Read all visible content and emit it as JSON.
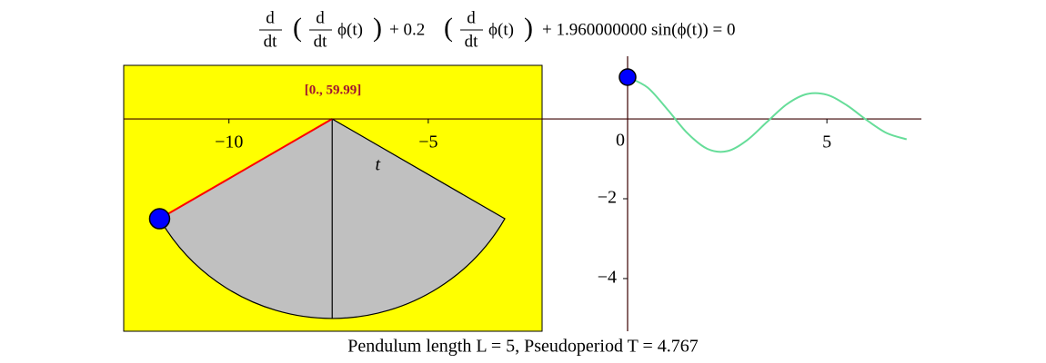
{
  "chart_data": {
    "type": "line",
    "equation": [
      "d",
      "dt",
      "d",
      "dt",
      "ϕ(t)",
      "+ 0.2",
      "d",
      "dt",
      "ϕ(t)",
      "+ 1.960000000 sin(ϕ(t)) = 0"
    ],
    "range_label": "[0., 59.99]",
    "caption": "Pendulum length L = 5, Pseudoperiod T = 4.767",
    "x_label": "t",
    "origin_label": "0",
    "xlim": [
      -12.64,
      7.37
    ],
    "ylim": [
      -5.32,
      1.57
    ],
    "xticks": [
      {
        "value": -10,
        "label": "−10"
      },
      {
        "value": -5,
        "label": "−5"
      },
      5
    ],
    "yticks": [
      {
        "value": -2,
        "label": "−2"
      },
      {
        "value": -4,
        "label": "−4"
      }
    ],
    "pendulum": {
      "pivot": [
        -7.41,
        0
      ],
      "length": 5,
      "amplitude": 1.047
    },
    "x": [
      0,
      0.5,
      1,
      1.5,
      2,
      2.5,
      3,
      3.5,
      4,
      4.5,
      5,
      5.5,
      6,
      6.5,
      7
    ],
    "series": [
      {
        "color": "#66dd99",
        "values": [
          1.047,
          0.788,
          0.237,
          -0.356,
          -0.749,
          -0.807,
          -0.531,
          -0.073,
          0.372,
          0.623,
          0.605,
          0.342,
          -0.03,
          -0.355,
          -0.511
        ]
      }
    ]
  }
}
